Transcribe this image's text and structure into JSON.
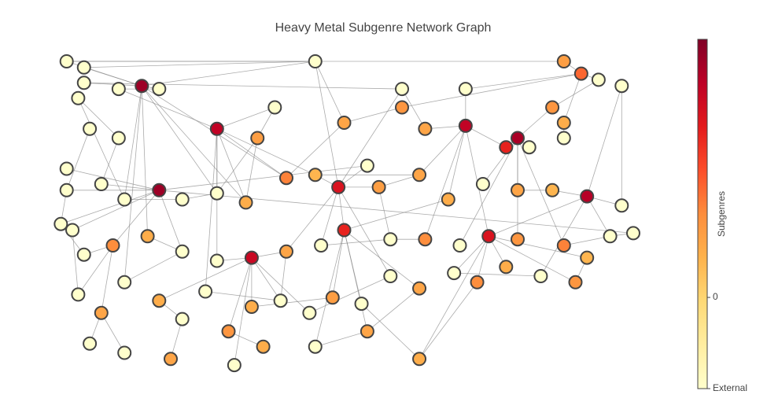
{
  "chart_data": {
    "type": "network",
    "title": "Heavy Metal Subgenre Network Graph",
    "x": [
      2,
      5,
      5,
      4,
      11,
      15,
      18,
      45,
      71,
      88,
      91,
      94,
      98,
      60,
      60,
      28,
      71,
      80,
      78,
      82,
      88,
      2,
      8,
      12,
      18,
      22,
      28,
      33,
      40,
      45,
      49,
      54,
      56,
      63,
      68,
      74,
      80,
      86,
      92,
      98,
      100,
      96,
      88,
      80,
      75,
      70,
      64,
      58,
      50,
      46,
      40,
      34,
      28,
      22,
      16,
      10,
      5,
      3,
      1,
      4,
      8,
      12,
      18,
      22,
      26,
      30,
      34,
      39,
      44,
      48,
      53,
      58,
      63,
      69,
      73,
      78,
      84,
      90,
      92,
      6,
      12,
      20,
      31,
      36,
      45,
      63,
      54,
      11,
      6,
      50,
      38,
      35,
      64,
      86,
      88,
      2
    ],
    "y": [
      100,
      98,
      93,
      88,
      91,
      92,
      91,
      100,
      91,
      100,
      96,
      94,
      92,
      91,
      85,
      78,
      79,
      75,
      72,
      72,
      80,
      58,
      60,
      55,
      58,
      55,
      57,
      54,
      62,
      63,
      59,
      66,
      59,
      63,
      55,
      60,
      58,
      58,
      56,
      53,
      44,
      43,
      40,
      42,
      43,
      40,
      42,
      42,
      45,
      40,
      38,
      36,
      35,
      38,
      43,
      40,
      37,
      45,
      47,
      24,
      18,
      28,
      22,
      16,
      25,
      12,
      20,
      22,
      18,
      23,
      21,
      30,
      26,
      31,
      28,
      33,
      30,
      28,
      36,
      8,
      5,
      3,
      1,
      7,
      7,
      3,
      12,
      75,
      78,
      80,
      85,
      75,
      78,
      85,
      75,
      65
    ],
    "values": [
      -1,
      -1,
      -1,
      -1,
      -1,
      2.6,
      -1,
      -1,
      -1,
      0.7,
      1.2,
      -1,
      -1,
      -1,
      0.8,
      2.3,
      2.3,
      2.5,
      1.8,
      -1,
      0.5,
      -1,
      -1,
      -1,
      2.6,
      -1,
      -1,
      0.5,
      1.0,
      0.4,
      2.0,
      -1,
      0.7,
      0.6,
      0.5,
      -1,
      0.6,
      0.4,
      2.4,
      -1,
      -1,
      -1,
      1.0,
      0.8,
      2.0,
      -1,
      0.9,
      -1,
      1.8,
      -1,
      0.6,
      2.2,
      -1,
      -1,
      0.5,
      0.9,
      -1,
      -1,
      -1,
      -1,
      0.6,
      -1,
      0.5,
      -1,
      -1,
      0.8,
      0.5,
      -1,
      -1,
      0.7,
      -1,
      -1,
      0.6,
      -1,
      0.9,
      0.5,
      -1,
      0.8,
      0.4,
      -1,
      -1,
      0.6,
      -1,
      0.5,
      -1,
      0.5,
      0.6,
      -1,
      -1,
      0.6,
      -1,
      0.7,
      0.6,
      0.8,
      -1,
      -1
    ],
    "edges": [
      [
        5,
        0
      ],
      [
        5,
        1
      ],
      [
        5,
        2
      ],
      [
        5,
        6
      ],
      [
        5,
        7
      ],
      [
        5,
        23
      ],
      [
        5,
        26
      ],
      [
        5,
        27
      ],
      [
        5,
        28
      ],
      [
        5,
        54
      ],
      [
        5,
        61
      ],
      [
        15,
        26
      ],
      [
        15,
        27
      ],
      [
        15,
        28
      ],
      [
        15,
        29
      ],
      [
        15,
        52
      ],
      [
        15,
        64
      ],
      [
        15,
        90
      ],
      [
        16,
        8
      ],
      [
        16,
        33
      ],
      [
        16,
        34
      ],
      [
        16,
        44
      ],
      [
        16,
        46
      ],
      [
        16,
        92
      ],
      [
        17,
        19
      ],
      [
        17,
        35
      ],
      [
        17,
        36
      ],
      [
        17,
        42
      ],
      [
        17,
        43
      ],
      [
        17,
        45
      ],
      [
        17,
        93
      ],
      [
        24,
        21
      ],
      [
        24,
        22
      ],
      [
        24,
        53
      ],
      [
        24,
        55
      ],
      [
        24,
        57
      ],
      [
        24,
        58
      ],
      [
        24,
        95
      ],
      [
        24,
        31
      ],
      [
        24,
        40
      ],
      [
        38,
        39
      ],
      [
        38,
        41
      ],
      [
        38,
        37
      ],
      [
        38,
        12
      ],
      [
        38,
        76
      ],
      [
        38,
        44
      ],
      [
        30,
        31
      ],
      [
        30,
        32
      ],
      [
        30,
        48
      ],
      [
        30,
        49
      ],
      [
        30,
        50
      ],
      [
        30,
        71
      ],
      [
        30,
        13
      ],
      [
        30,
        7
      ],
      [
        51,
        50
      ],
      [
        51,
        52
      ],
      [
        51,
        62
      ],
      [
        51,
        65
      ],
      [
        51,
        66
      ],
      [
        51,
        67
      ],
      [
        51,
        68
      ],
      [
        51,
        82
      ],
      [
        48,
        69
      ],
      [
        48,
        70
      ],
      [
        48,
        72
      ],
      [
        48,
        84
      ],
      [
        48,
        86
      ],
      [
        48,
        34
      ],
      [
        44,
        73
      ],
      [
        44,
        74
      ],
      [
        44,
        75
      ],
      [
        44,
        77
      ],
      [
        44,
        78
      ],
      [
        44,
        85
      ],
      [
        10,
        9
      ],
      [
        10,
        11
      ],
      [
        10,
        20
      ],
      [
        10,
        14
      ],
      [
        10,
        8
      ],
      [
        0,
        9
      ],
      [
        0,
        7
      ],
      [
        2,
        13
      ],
      [
        3,
        87
      ],
      [
        88,
        21
      ],
      [
        87,
        22
      ],
      [
        55,
        56
      ],
      [
        55,
        59
      ],
      [
        55,
        60
      ],
      [
        60,
        79
      ],
      [
        60,
        80
      ],
      [
        62,
        63
      ],
      [
        63,
        81
      ],
      [
        65,
        83
      ],
      [
        66,
        69
      ],
      [
        28,
        89
      ],
      [
        89,
        14
      ],
      [
        91,
        90
      ],
      [
        91,
        27
      ],
      [
        47,
        46
      ],
      [
        47,
        32
      ],
      [
        29,
        33
      ],
      [
        42,
        41
      ],
      [
        94,
        20
      ],
      [
        57,
        59
      ],
      [
        58,
        56
      ],
      [
        21,
        58
      ],
      [
        7,
        89
      ],
      [
        13,
        92
      ],
      [
        84,
        86
      ],
      [
        85,
        70
      ],
      [
        54,
        53
      ],
      [
        25,
        26
      ],
      [
        25,
        23
      ],
      [
        36,
        37
      ],
      [
        32,
        33
      ],
      [
        40,
        41
      ],
      [
        64,
        67
      ],
      [
        68,
        71
      ],
      [
        18,
        16
      ],
      [
        18,
        17
      ],
      [
        49,
        47
      ],
      [
        61,
        53
      ],
      [
        73,
        76
      ],
      [
        77,
        78
      ],
      [
        4,
        6
      ],
      [
        4,
        15
      ],
      [
        3,
        23
      ],
      [
        1,
        7
      ],
      [
        11,
        93
      ],
      [
        12,
        39
      ],
      [
        50,
        67
      ],
      [
        72,
        86
      ],
      [
        74,
        85
      ],
      [
        26,
        91
      ],
      [
        29,
        30
      ]
    ],
    "xlim": [
      0,
      100
    ],
    "ylim": [
      0,
      100
    ],
    "edge_color": "#888888",
    "node_line_color": "#444444",
    "colorbar": {
      "title": "Subgenres",
      "clim": [
        -1,
        2.83
      ],
      "ticks": [
        {
          "value": -1,
          "label": "External"
        },
        0
      ],
      "colorscale": [
        "#ffffcc",
        "#ffeda0",
        "#fed976",
        "#feb24c",
        "#fd8d3c",
        "#fc4e2a",
        "#e31a1c",
        "#bd0026",
        "#800026"
      ]
    }
  }
}
